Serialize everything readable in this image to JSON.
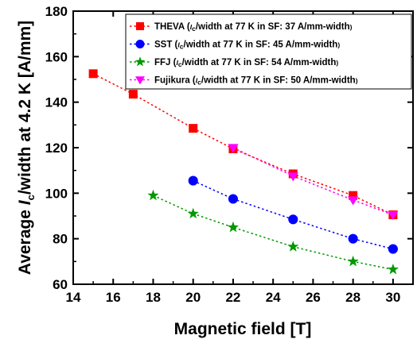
{
  "chart_data": {
    "type": "scatter",
    "title": "",
    "xlabel": "Magnetic field [T]",
    "ylabel": {
      "prefix": "Average ",
      "italic": "I",
      "sub": "c",
      "suffix": "/width at 4.2 K [A/mm]"
    },
    "xlim": [
      14,
      31
    ],
    "ylim": [
      60,
      180
    ],
    "xticks": [
      "14",
      "16",
      "18",
      "20",
      "22",
      "24",
      "26",
      "28",
      "30"
    ],
    "yticks": [
      "60",
      "80",
      "100",
      "120",
      "140",
      "160",
      "180"
    ],
    "grid": false,
    "legend_position": "top-right",
    "series": [
      {
        "name": "THEVA",
        "legend_note": "/width at 77 K in SF: 37 A/mm-width",
        "color": "#ff0000",
        "marker": "square",
        "x": [
          15,
          17,
          20,
          22,
          25,
          28,
          30
        ],
        "y": [
          152.5,
          143.5,
          128.5,
          119.5,
          108.5,
          99,
          90.5
        ]
      },
      {
        "name": "SST",
        "legend_note": "/width  at 77 K in SF: 45 A/mm-width",
        "color": "#0000ff",
        "marker": "circle",
        "x": [
          20,
          22,
          25,
          28,
          30
        ],
        "y": [
          105.5,
          97.5,
          88.5,
          80,
          75.5
        ]
      },
      {
        "name": "FFJ",
        "legend_note": "/width at 77 K in SF: 54 A/mm-width",
        "color": "#009900",
        "marker": "star",
        "x": [
          18,
          20,
          22,
          25,
          28,
          30
        ],
        "y": [
          99,
          91,
          85,
          76.5,
          70,
          66.5
        ]
      },
      {
        "name": "Fujikura",
        "legend_note": "/width at 77 K in SF: 50 A/mm-width",
        "color": "#ff00ff",
        "marker": "triangle-down",
        "x": [
          22,
          25,
          28,
          30
        ],
        "y": [
          120,
          107.5,
          97,
          90.5
        ]
      }
    ]
  }
}
